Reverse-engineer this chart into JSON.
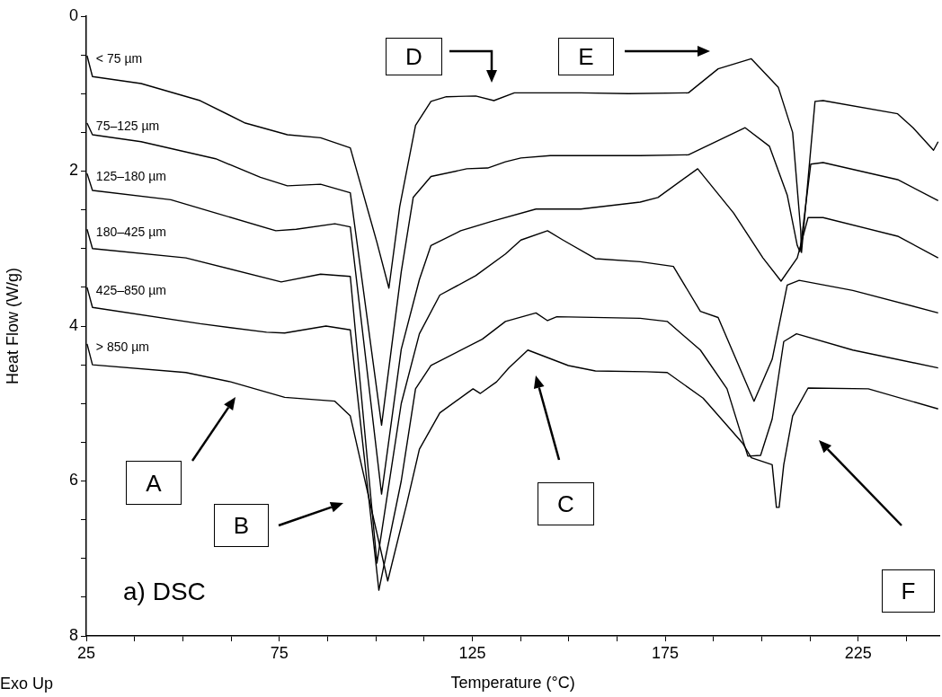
{
  "chart_data": {
    "type": "line",
    "xlabel": "Temperature (°C)",
    "ylabel": "Heat Flow (W/g)",
    "xlim": [
      25,
      246
    ],
    "ylim": [
      8,
      0
    ],
    "xticks": [
      25,
      {
        "value": 37.5,
        "label": null
      },
      {
        "value": 50,
        "label": null
      },
      {
        "value": 62.5,
        "label": null
      },
      75,
      {
        "value": 87.5,
        "label": null
      },
      {
        "value": 100,
        "label": null
      },
      {
        "value": 112.5,
        "label": null
      },
      125,
      {
        "value": 137.5,
        "label": null
      },
      {
        "value": 150,
        "label": null
      },
      {
        "value": 162.5,
        "label": null
      },
      175,
      {
        "value": 187.5,
        "label": null
      },
      {
        "value": 200,
        "label": null
      },
      {
        "value": 212.5,
        "label": null
      },
      225,
      {
        "value": 237.5,
        "label": null
      }
    ],
    "yticks": [
      0,
      {
        "value": 0.5,
        "label": null
      },
      {
        "value": 1,
        "label": null
      },
      {
        "value": 1.5,
        "label": null
      },
      2,
      {
        "value": 2.5,
        "label": null
      },
      {
        "value": 3,
        "label": null
      },
      {
        "value": 3.5,
        "label": null
      },
      4,
      {
        "value": 4.5,
        "label": null
      },
      {
        "value": 5,
        "label": null
      },
      {
        "value": 5.5,
        "label": null
      },
      6,
      {
        "value": 6.5,
        "label": null
      },
      {
        "value": 7,
        "label": null
      },
      {
        "value": 7.5,
        "label": null
      },
      8
    ],
    "grid": false,
    "legend": false,
    "marker": "none",
    "line_style": "solid",
    "series": [
      {
        "name": "< 75 µm",
        "color": "#000000",
        "x": [
          25.2,
          26.6,
          39.2,
          54.5,
          66.2,
          77.1,
          85.7,
          93.4,
          100.3,
          103.4,
          106.2,
          110.3,
          114.3,
          118.3,
          125.9,
          130.6,
          135.9,
          153.1,
          165.5,
          181.0,
          188.7,
          197.3,
          204.3,
          208.0,
          210.1,
          210.3,
          213.8,
          215.9,
          235.2,
          239.2,
          244.5,
          245.7
        ],
        "values": [
          0.51,
          0.78,
          0.87,
          1.09,
          1.38,
          1.53,
          1.57,
          1.7,
          2.92,
          3.51,
          2.46,
          1.41,
          1.1,
          1.04,
          1.03,
          1.09,
          0.99,
          0.99,
          1.0,
          0.99,
          0.68,
          0.55,
          0.92,
          1.5,
          2.77,
          3.05,
          1.1,
          1.09,
          1.26,
          1.44,
          1.73,
          1.62
        ]
      },
      {
        "name": "75–125 µm",
        "color": "#000000",
        "x": [
          25.2,
          26.6,
          39.2,
          58.5,
          70.1,
          77.1,
          85.7,
          93.4,
          101.5,
          106.6,
          109.7,
          114.3,
          123.6,
          129.0,
          133.6,
          137.6,
          145.2,
          168.5,
          181.0,
          195.7,
          202.0,
          206.6,
          209.2,
          209.9,
          212.7,
          215.9,
          235.2,
          245.7
        ],
        "values": [
          1.38,
          1.53,
          1.62,
          1.84,
          2.08,
          2.19,
          2.17,
          2.28,
          5.28,
          3.3,
          2.34,
          2.07,
          1.97,
          1.96,
          1.88,
          1.83,
          1.8,
          1.8,
          1.79,
          1.44,
          1.68,
          2.31,
          2.96,
          3.04,
          1.91,
          1.89,
          2.11,
          2.38
        ]
      },
      {
        "name": "125–180 µm",
        "color": "#000000",
        "x": [
          25.2,
          26.6,
          46.9,
          58.5,
          74.1,
          79.4,
          89.4,
          93.4,
          101.5,
          106.6,
          111.3,
          114.3,
          122.0,
          129.9,
          141.5,
          153.1,
          168.5,
          173.1,
          183.4,
          192.7,
          200.3,
          205.0,
          209.2,
          212.0,
          215.9,
          235.2,
          245.7
        ],
        "values": [
          2.03,
          2.25,
          2.37,
          2.54,
          2.77,
          2.75,
          2.68,
          2.72,
          6.17,
          4.3,
          3.4,
          2.96,
          2.77,
          2.65,
          2.49,
          2.49,
          2.4,
          2.34,
          1.97,
          2.54,
          3.12,
          3.42,
          3.12,
          2.6,
          2.6,
          2.84,
          3.12
        ]
      },
      {
        "name": "180–425 µm",
        "color": "#000000",
        "x": [
          25.2,
          26.6,
          50.8,
          75.5,
          85.7,
          93.4,
          100.3,
          106.6,
          111.3,
          116.6,
          125.9,
          133.6,
          137.6,
          144.5,
          148.5,
          156.9,
          168.5,
          177.1,
          184.1,
          188.7,
          198.0,
          202.7,
          206.6,
          209.7,
          223.6,
          245.7
        ],
        "values": [
          2.75,
          3.0,
          3.12,
          3.43,
          3.33,
          3.36,
          7.06,
          5.0,
          4.1,
          3.6,
          3.35,
          3.07,
          2.89,
          2.77,
          2.89,
          3.13,
          3.17,
          3.23,
          3.81,
          3.89,
          4.97,
          4.43,
          3.47,
          3.41,
          3.54,
          3.83
        ]
      },
      {
        "name": "425–850 µm",
        "color": "#000000",
        "x": [
          25.2,
          26.6,
          54.5,
          71.7,
          76.4,
          87.1,
          93.4,
          100.8,
          106.6,
          110.3,
          114.3,
          127.6,
          133.6,
          141.5,
          144.5,
          146.9,
          168.5,
          175.5,
          184.1,
          191.0,
          196.4,
          199.7,
          202.7,
          205.7,
          209.0,
          223.6,
          245.7
        ],
        "values": [
          3.5,
          3.76,
          3.97,
          4.08,
          4.09,
          4.0,
          4.05,
          7.41,
          6.0,
          4.81,
          4.51,
          4.17,
          3.94,
          3.83,
          3.93,
          3.88,
          3.9,
          3.94,
          4.31,
          4.81,
          5.68,
          5.67,
          5.2,
          4.2,
          4.1,
          4.31,
          4.54
        ]
      },
      {
        "name": "> 850 µm",
        "color": "#000000",
        "x": [
          25.2,
          26.6,
          50.8,
          62.4,
          76.4,
          89.4,
          93.4,
          103.1,
          108.0,
          111.3,
          116.6,
          125.2,
          127.1,
          131.3,
          134.5,
          139.4,
          149.9,
          156.9,
          170.1,
          175.5,
          184.8,
          195.0,
          197.3,
          202.7,
          203.8,
          204.5,
          205.7,
          208.0,
          212.0,
          227.6,
          245.7
        ],
        "values": [
          4.23,
          4.5,
          4.6,
          4.72,
          4.92,
          4.97,
          5.16,
          7.29,
          6.3,
          5.59,
          5.12,
          4.81,
          4.87,
          4.72,
          4.54,
          4.31,
          4.51,
          4.58,
          4.59,
          4.6,
          4.93,
          5.51,
          5.7,
          5.79,
          6.34,
          6.34,
          5.79,
          5.16,
          4.8,
          4.81,
          5.07
        ]
      }
    ],
    "annotations": [
      "A",
      "B",
      "C",
      "D",
      "E",
      "F",
      "a) DSC",
      "Exo Up"
    ]
  }
}
